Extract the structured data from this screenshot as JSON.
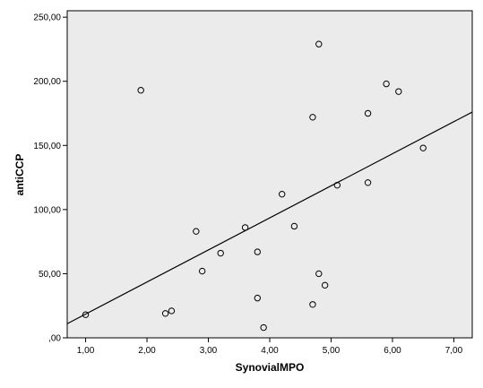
{
  "chart_data": {
    "type": "scatter",
    "title": "",
    "xlabel": "SynovialMPO",
    "ylabel": "antiCCP",
    "xlim": [
      0.7,
      7.3
    ],
    "ylim": [
      0,
      255
    ],
    "x_ticks": [
      1,
      2,
      3,
      4,
      5,
      6,
      7
    ],
    "x_tick_labels": [
      "1,00",
      "2,00",
      "3,00",
      "4,00",
      "5,00",
      "6,00",
      "7,00"
    ],
    "y_ticks": [
      0,
      50,
      100,
      150,
      200,
      250
    ],
    "y_tick_labels": [
      ",00",
      "50,00",
      "100,00",
      "150,00",
      "200,00",
      "250,00"
    ],
    "grid": false,
    "legend": false,
    "background_color": "#ebebeb",
    "marker": "open-circle",
    "points": [
      {
        "x": 1.0,
        "y": 18
      },
      {
        "x": 1.9,
        "y": 193
      },
      {
        "x": 2.3,
        "y": 19
      },
      {
        "x": 2.4,
        "y": 21
      },
      {
        "x": 2.8,
        "y": 83
      },
      {
        "x": 2.9,
        "y": 52
      },
      {
        "x": 3.2,
        "y": 66
      },
      {
        "x": 3.6,
        "y": 86
      },
      {
        "x": 3.8,
        "y": 67
      },
      {
        "x": 3.8,
        "y": 31
      },
      {
        "x": 3.9,
        "y": 8
      },
      {
        "x": 4.2,
        "y": 112
      },
      {
        "x": 4.4,
        "y": 87
      },
      {
        "x": 4.7,
        "y": 172
      },
      {
        "x": 4.7,
        "y": 26
      },
      {
        "x": 4.8,
        "y": 229
      },
      {
        "x": 4.8,
        "y": 50
      },
      {
        "x": 4.9,
        "y": 41
      },
      {
        "x": 5.1,
        "y": 119
      },
      {
        "x": 5.6,
        "y": 175
      },
      {
        "x": 5.6,
        "y": 121
      },
      {
        "x": 5.9,
        "y": 198
      },
      {
        "x": 6.1,
        "y": 192
      },
      {
        "x": 6.5,
        "y": 148
      }
    ],
    "fit_line": {
      "type": "linear",
      "x": [
        0.7,
        7.3
      ],
      "y": [
        11,
        176
      ]
    }
  }
}
